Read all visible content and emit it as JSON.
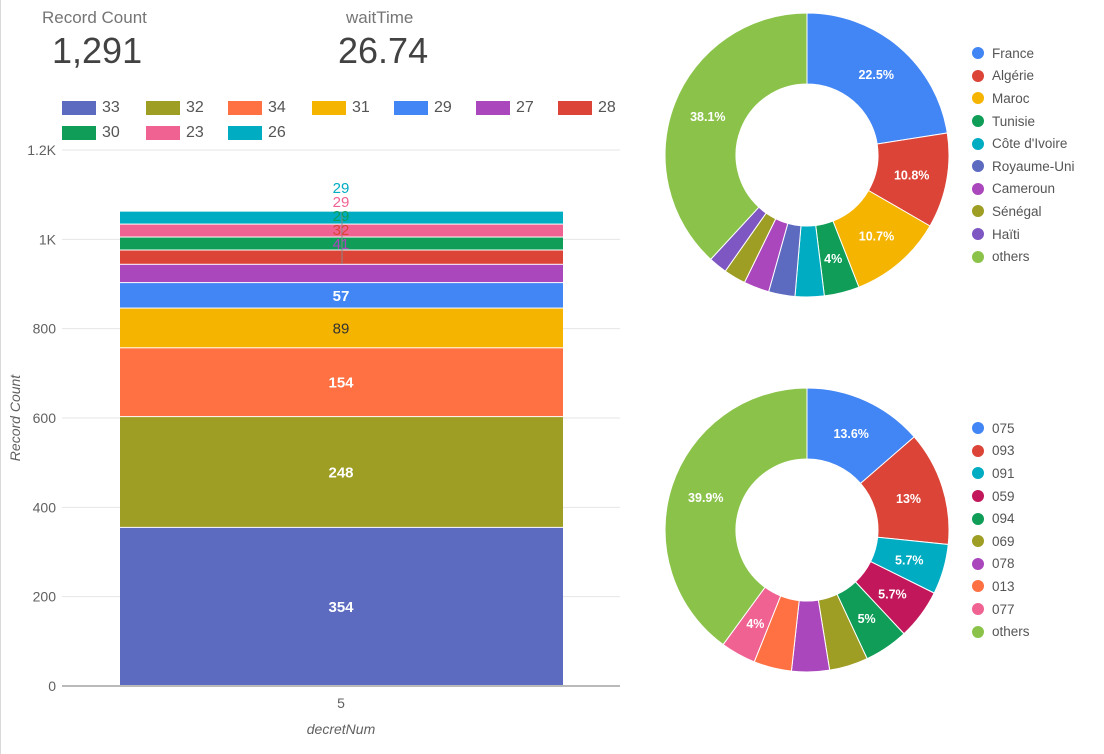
{
  "scorecards": [
    {
      "label": "Record Count",
      "value": "1,291"
    },
    {
      "label": "waitTime",
      "value": "26.74"
    }
  ],
  "chart_data": [
    {
      "type": "bar",
      "stacked": true,
      "xlabel": "decretNum",
      "ylabel": "Record Count",
      "categories": [
        "5"
      ],
      "ylim": [
        0,
        1200
      ],
      "yticks": [
        0,
        200,
        400,
        600,
        800,
        1000,
        1200
      ],
      "ytick_labels": [
        "0",
        "200",
        "400",
        "600",
        "800",
        "1K",
        "1.2K"
      ],
      "grid": true,
      "legend_position": "top",
      "series": [
        {
          "name": "33",
          "values": [
            354
          ],
          "color": "#5c6bc0",
          "label": "354"
        },
        {
          "name": "32",
          "values": [
            248
          ],
          "color": "#9e9d24",
          "label": "248"
        },
        {
          "name": "34",
          "values": [
            154
          ],
          "color": "#ff7043",
          "label": "154"
        },
        {
          "name": "31",
          "values": [
            89
          ],
          "color": "#f4b400",
          "label": "89"
        },
        {
          "name": "29",
          "values": [
            57
          ],
          "color": "#4285f4",
          "label": "57"
        },
        {
          "name": "27",
          "values": [
            41
          ],
          "color": "#ab47bc",
          "label": "41"
        },
        {
          "name": "28",
          "values": [
            32
          ],
          "color": "#db4437",
          "label": "32"
        },
        {
          "name": "30",
          "values": [
            29
          ],
          "color": "#0f9d58",
          "label": "29"
        },
        {
          "name": "23",
          "values": [
            29
          ],
          "color": "#f06292",
          "label": "29"
        },
        {
          "name": "26",
          "values": [
            29
          ],
          "color": "#00acc1",
          "label": "29"
        }
      ]
    },
    {
      "type": "pie",
      "donut": true,
      "legend_position": "right",
      "slices": [
        {
          "name": "France",
          "value": 22.5,
          "label": "22.5%",
          "color": "#4285f4"
        },
        {
          "name": "Algérie",
          "value": 10.8,
          "label": "10.8%",
          "color": "#db4437"
        },
        {
          "name": "Maroc",
          "value": 10.7,
          "label": "10.7%",
          "color": "#f4b400"
        },
        {
          "name": "Tunisie",
          "value": 4.0,
          "label": "4%",
          "color": "#0f9d58"
        },
        {
          "name": "Côte d'Ivoire",
          "value": 3.3,
          "label": "",
          "color": "#00acc1"
        },
        {
          "name": "Royaume-Uni",
          "value": 3.0,
          "label": "",
          "color": "#5c6bc0"
        },
        {
          "name": "Cameroun",
          "value": 2.9,
          "label": "",
          "color": "#ab47bc"
        },
        {
          "name": "Sénégal",
          "value": 2.5,
          "label": "",
          "color": "#9e9d24"
        },
        {
          "name": "Haïti",
          "value": 2.1,
          "label": "",
          "color": "#7e57c2"
        },
        {
          "name": "others",
          "value": 38.1,
          "label": "38.1%",
          "color": "#8bc34a"
        }
      ]
    },
    {
      "type": "pie",
      "donut": true,
      "legend_position": "right",
      "slices": [
        {
          "name": "075",
          "value": 13.6,
          "label": "13.6%",
          "color": "#4285f4"
        },
        {
          "name": "093",
          "value": 13.0,
          "label": "13%",
          "color": "#db4437"
        },
        {
          "name": "091",
          "value": 5.7,
          "label": "5.7%",
          "color": "#00acc1"
        },
        {
          "name": "059",
          "value": 5.7,
          "label": "5.7%",
          "color": "#c2185b"
        },
        {
          "name": "094",
          "value": 5.0,
          "label": "5%",
          "color": "#0f9d58"
        },
        {
          "name": "069",
          "value": 4.4,
          "label": "",
          "color": "#9e9d24"
        },
        {
          "name": "078",
          "value": 4.3,
          "label": "",
          "color": "#ab47bc"
        },
        {
          "name": "013",
          "value": 4.3,
          "label": "",
          "color": "#ff7043"
        },
        {
          "name": "077",
          "value": 4.0,
          "label": "4%",
          "color": "#f06292"
        },
        {
          "name": "others",
          "value": 39.9,
          "label": "39.9%",
          "color": "#8bc34a"
        }
      ]
    }
  ]
}
